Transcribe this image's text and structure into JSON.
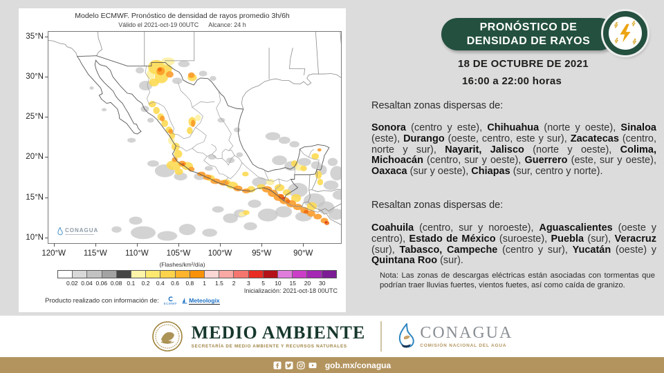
{
  "colors": {
    "accent_green": "#24503f",
    "footer_gold": "#b3945f",
    "page_bg": "#dcdcdc",
    "bolt_gold": "#eca413"
  },
  "map_panel": {
    "title": "Modelo ECMWF. Pronóstico de densidad de rayos promedio 3h/6h",
    "subtitle_left": "Válido el 2021-oct-19 00UTC",
    "subtitle_right": "Alcance: 24 h",
    "lat_ticks": [
      "35°N",
      "30°N",
      "25°N",
      "20°N",
      "15°N",
      "10°N"
    ],
    "lon_ticks": [
      "120°W",
      "115°W",
      "110°W",
      "105°W",
      "100°W",
      "95°W",
      "90°W"
    ],
    "units_label": "(Flashes/km²/día)",
    "colorbar": {
      "boundaries": [
        "0.02",
        "0.04",
        "0.06",
        "0.08",
        "0.1",
        "0.2",
        "0.4",
        "0.6",
        "0.8",
        "1",
        "1.5",
        "2",
        "3",
        "5",
        "10",
        "15",
        "20",
        "30"
      ],
      "colors": [
        "#ffffff",
        "#d9d9d9",
        "#c2c2c2",
        "#a3a3a3",
        "#454545",
        "#fdf4a9",
        "#fde970",
        "#fdd34b",
        "#fdb32b",
        "#f99208",
        "#fcd7d4",
        "#f9a8a4",
        "#f4766f",
        "#e82c23",
        "#b31218",
        "#e07ddc",
        "#cb3ec8",
        "#a428b4",
        "#7c1d96"
      ]
    },
    "init_label": "Inicialización: 2021-oct-18 00UTC",
    "credit": "Producto realizado con información de:",
    "source_logos": {
      "ecmwf": "ECMWF",
      "meteologix": "Meteologix"
    },
    "watermark": "CONAGUA"
  },
  "header": {
    "title_line1": "PRONÓSTICO DE",
    "title_line2": "DENSIDAD DE RAYOS",
    "date": "18 DE OCTUBRE DE 2021",
    "time": "16:00 a 22:00 horas"
  },
  "content": {
    "section1": {
      "lead": "Resaltan zonas dispersas de:",
      "items": [
        {
          "b": "Sonora",
          "t": " (centro y este), "
        },
        {
          "b": "Chihuahua",
          "t": " (norte y oeste), "
        },
        {
          "b": "Sinaloa",
          "t": " (este), "
        },
        {
          "b": "Durango",
          "t": " (oeste, centro, este y sur), "
        },
        {
          "b": "Zacatecas",
          "t": " (centro, norte y sur), "
        },
        {
          "b": "Nayarit, Jalisco",
          "t": " (norte y oeste), "
        },
        {
          "b": "Colima, Michoacán",
          "t": " (centro, sur y oeste), "
        },
        {
          "b": "Guerrero",
          "t": " (este, sur y oeste), "
        },
        {
          "b": "Oaxaca",
          "t": " (sur y oeste), "
        },
        {
          "b": "Chiapas",
          "t": " (sur, centro y norte)."
        }
      ]
    },
    "section2": {
      "lead": "Resaltan zonas dispersas de:",
      "items": [
        {
          "b": "Coahuila",
          "t": " (centro, sur y noroeste), "
        },
        {
          "b": "Aguascalientes",
          "t": " (oeste y centro), "
        },
        {
          "b": "Estado de México",
          "t": " (suroeste), "
        },
        {
          "b": "Puebla",
          "t": " (sur), "
        },
        {
          "b": "Veracruz",
          "t": " (sur), "
        },
        {
          "b": "Tabasco, Campeche",
          "t": " (centro y sur), "
        },
        {
          "b": "Yucatán",
          "t": " (oeste) y "
        },
        {
          "b": "Quintana Roo",
          "t": " (sur)."
        }
      ]
    },
    "note": "Nota: Las zonas de descargas eléctricas están asociadas con tormentas que podrían traer lluvias fuertes, vientos fuetes, así como caída de granizo."
  },
  "footer": {
    "agency1": {
      "name": "MEDIO AMBIENTE",
      "subtitle": "SECRETARÍA DE MEDIO AMBIENTE Y RECURSOS NATURALES"
    },
    "agency2": {
      "name": "CONAGUA",
      "subtitle": "COMISIÓN NACIONAL DEL AGUA"
    },
    "social": {
      "url": "gob.mx/conagua",
      "icons": [
        "facebook-icon",
        "twitter-icon",
        "instagram-icon",
        "youtube-icon"
      ]
    }
  }
}
